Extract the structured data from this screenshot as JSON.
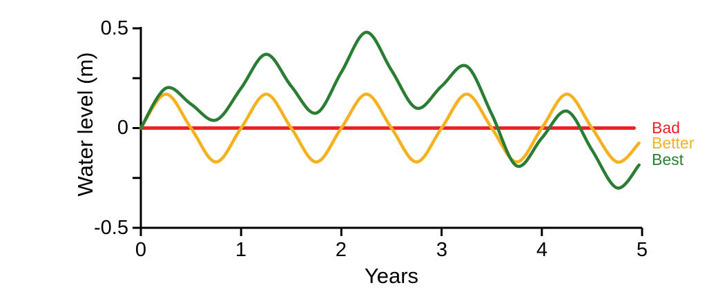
{
  "figure": {
    "background": "#ffffff",
    "axis_color": "#000000",
    "y_axis": {
      "tick_values": [
        0.5,
        0.25,
        0,
        -0.25,
        -0.5
      ],
      "range": [
        -0.5,
        0.5
      ]
    },
    "x_axis": {
      "tick_values": [
        0,
        1,
        2,
        3,
        4,
        5
      ],
      "range": [
        0,
        5
      ]
    }
  },
  "chart_data": {
    "type": "line",
    "title": "",
    "xlabel": "Years",
    "ylabel": "Water level (m)",
    "xlim": [
      0,
      5
    ],
    "ylim": [
      -0.5,
      0.5
    ],
    "x_ticks": [
      "0",
      "1",
      "2",
      "3",
      "4",
      "5"
    ],
    "y_ticks": [
      "0.5",
      "0",
      "-0.5"
    ],
    "grid": false,
    "legend_position": "right-outside",
    "series": [
      {
        "name": "Bad",
        "color": "#EC2028",
        "line_width": 5,
        "x": [
          0,
          4.92
        ],
        "y": [
          0,
          0
        ]
      },
      {
        "name": "Better",
        "color": "#F5B120",
        "line_width": 4.5,
        "x": [
          0,
          0.25,
          0.5,
          0.75,
          1,
          1.25,
          1.5,
          1.75,
          2,
          2.25,
          2.5,
          2.75,
          3,
          3.25,
          3.5,
          3.75,
          4,
          4.25,
          4.5,
          4.75,
          4.97
        ],
        "y": [
          0,
          0.17,
          0,
          -0.17,
          0,
          0.17,
          0,
          -0.17,
          0,
          0.17,
          0,
          -0.17,
          0,
          0.17,
          0,
          -0.17,
          0,
          0.17,
          0,
          -0.17,
          -0.075
        ]
      },
      {
        "name": "Best",
        "color": "#2B7D34",
        "line_width": 4.5,
        "x": [
          0,
          0.25,
          0.5,
          0.75,
          1,
          1.25,
          1.5,
          1.75,
          2,
          2.25,
          2.5,
          2.75,
          3,
          3.25,
          3.5,
          3.75,
          4,
          4.25,
          4.5,
          4.75,
          4.97
        ],
        "y": [
          0,
          0.2,
          0.12,
          0.04,
          0.2,
          0.37,
          0.21,
          0.075,
          0.28,
          0.48,
          0.29,
          0.1,
          0.21,
          0.31,
          0.07,
          -0.19,
          -0.05,
          0.085,
          -0.11,
          -0.3,
          -0.185
        ]
      }
    ]
  }
}
